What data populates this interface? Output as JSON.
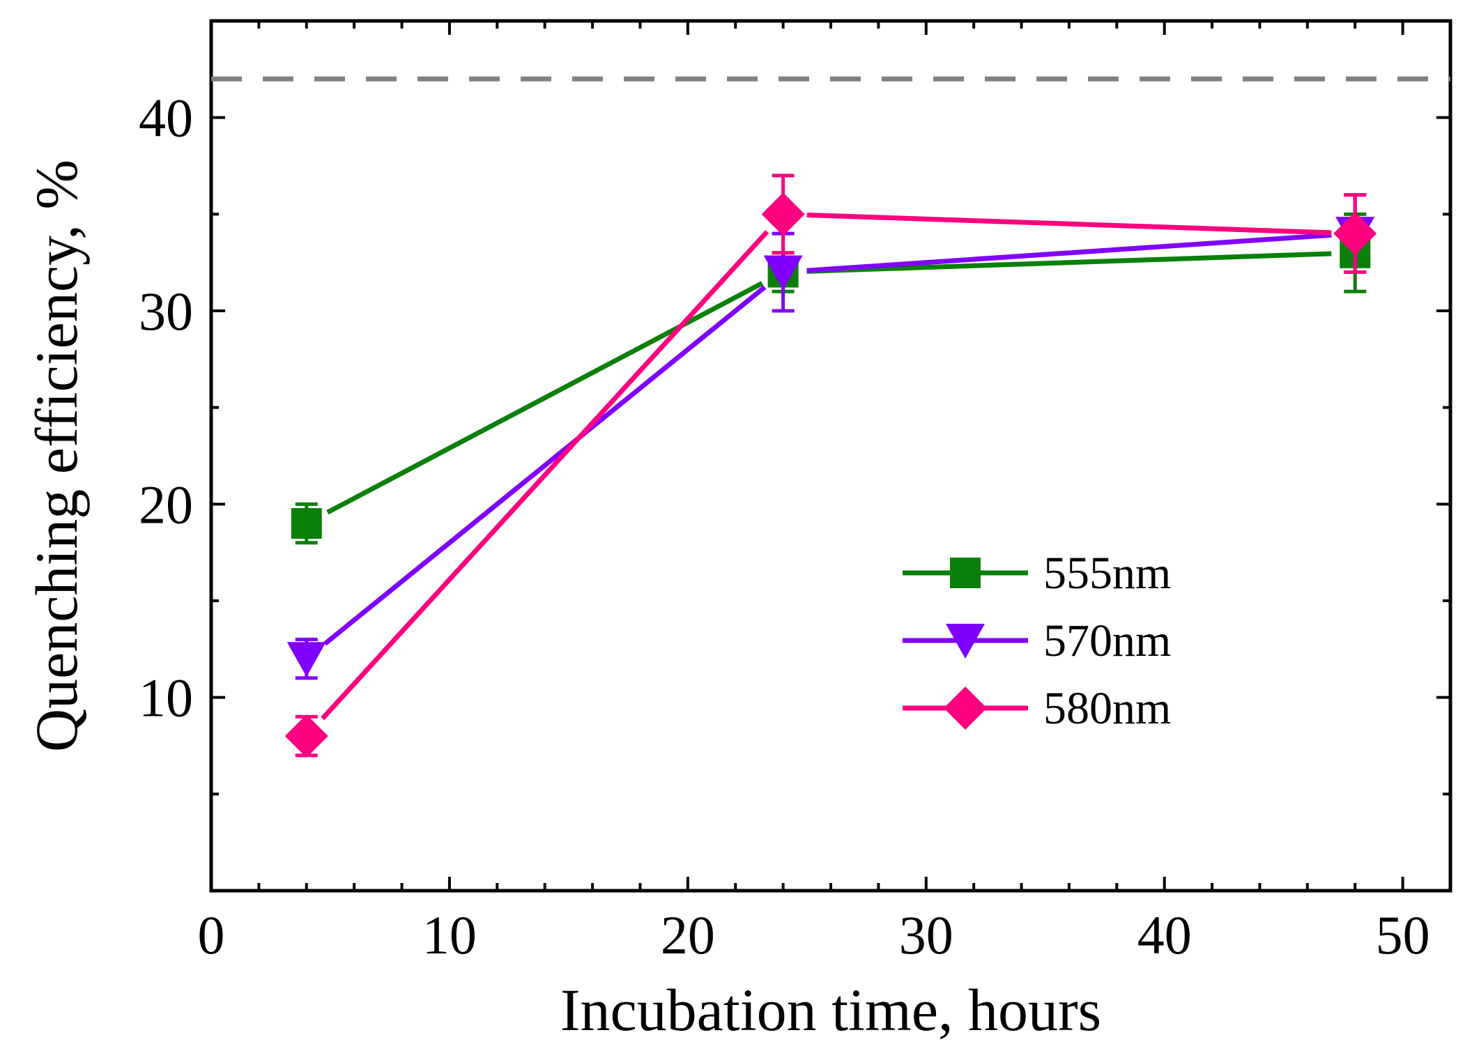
{
  "chart_data": {
    "type": "line",
    "xlabel": "Incubation time, hours",
    "ylabel": "Quenching efficiency, %",
    "xlim": [
      0,
      52
    ],
    "ylim": [
      0,
      45
    ],
    "x_ticks": [
      0,
      10,
      20,
      30,
      40,
      50
    ],
    "y_ticks": [
      10,
      20,
      30,
      40
    ],
    "x_minor_step": 2,
    "y_minor_step": 5,
    "grid": false,
    "legend_placement": "lower-right",
    "reference_line": {
      "y": 42,
      "color": "#808080",
      "style": "dashed"
    },
    "x": [
      4,
      24,
      48
    ],
    "series": [
      {
        "name": "555nm",
        "color": "#0a800a",
        "marker": "square",
        "values": [
          19,
          32,
          33
        ],
        "errors": [
          1,
          1,
          2
        ]
      },
      {
        "name": "570nm",
        "color": "#8000ff",
        "marker": "triangle-down",
        "values": [
          12,
          32,
          34
        ],
        "errors": [
          1,
          2,
          2
        ]
      },
      {
        "name": "580nm",
        "color": "#ff007f",
        "marker": "diamond",
        "values": [
          8,
          35,
          34
        ],
        "errors": [
          1,
          2,
          2
        ]
      }
    ]
  }
}
